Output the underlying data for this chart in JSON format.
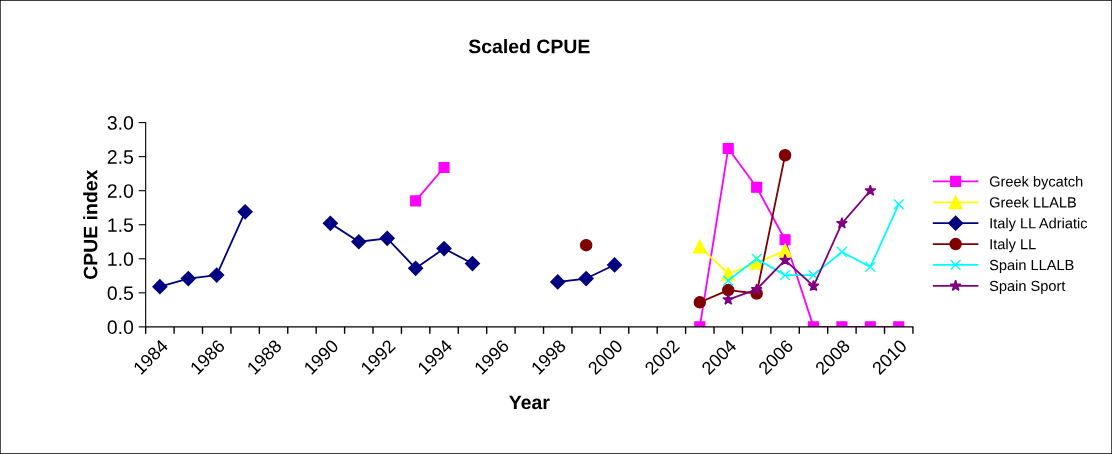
{
  "chart_data": {
    "type": "line",
    "title": "Scaled CPUE",
    "xlabel": "Year",
    "ylabel": "CPUE index",
    "categories": [
      "1984",
      null,
      "1986",
      null,
      "1988",
      null,
      "1990",
      null,
      "1992",
      null,
      "1994",
      null,
      "1996",
      null,
      "1998",
      null,
      "2000",
      null,
      "2002",
      null,
      "2004",
      null,
      "2006",
      null,
      "2008",
      null,
      "2010"
    ],
    "ylim": [
      0,
      3
    ],
    "yticks": [
      {
        "value": 0,
        "label": "0.0"
      },
      {
        "value": 0.5,
        "label": "0.5"
      },
      {
        "value": 1,
        "label": "1.0"
      },
      {
        "value": 1.5,
        "label": "1.5"
      },
      {
        "value": 2,
        "label": "2.0"
      },
      {
        "value": 2.5,
        "label": "2.5"
      },
      {
        "value": 3,
        "label": "3.0"
      }
    ],
    "grid": false,
    "legend": "right",
    "line_style": "solid",
    "series": [
      {
        "name": "Greek bycatch",
        "color": "#ff00ff",
        "marker": "square",
        "values": [
          null,
          null,
          null,
          null,
          null,
          null,
          null,
          null,
          null,
          1.85,
          2.34,
          null,
          null,
          null,
          null,
          null,
          null,
          null,
          null,
          0.0,
          2.62,
          2.05,
          1.28,
          0.0,
          0.0,
          0.0,
          0.0
        ]
      },
      {
        "name": "Greek LLALB",
        "color": "#ffff00",
        "marker": "triangle",
        "values": [
          null,
          null,
          null,
          null,
          null,
          null,
          null,
          null,
          null,
          null,
          null,
          null,
          null,
          null,
          null,
          null,
          null,
          null,
          null,
          1.18,
          0.78,
          0.94,
          1.12,
          null,
          null,
          null,
          null
        ]
      },
      {
        "name": "Italy LL Adriatic",
        "color": "#000080",
        "marker": "diamond",
        "values": [
          0.59,
          0.71,
          0.76,
          1.69,
          null,
          null,
          1.52,
          1.25,
          1.3,
          0.86,
          1.15,
          0.93,
          null,
          null,
          0.66,
          0.71,
          0.91,
          null,
          null,
          null,
          null,
          null,
          null,
          null,
          null,
          null,
          null
        ]
      },
      {
        "name": "Italy LL",
        "color": "#800000",
        "marker": "circle",
        "values": [
          null,
          null,
          null,
          null,
          null,
          null,
          null,
          null,
          null,
          null,
          null,
          null,
          null,
          null,
          null,
          1.2,
          null,
          null,
          null,
          0.36,
          0.54,
          0.49,
          2.52,
          null,
          null,
          null,
          null
        ]
      },
      {
        "name": "Spain LLALB",
        "color": "#00ffff",
        "marker": "cross",
        "values": [
          null,
          null,
          null,
          null,
          null,
          null,
          null,
          null,
          null,
          null,
          null,
          null,
          null,
          null,
          null,
          null,
          null,
          null,
          null,
          null,
          0.68,
          1.0,
          0.76,
          0.76,
          1.1,
          0.88,
          1.8
        ]
      },
      {
        "name": "Spain Sport",
        "color": "#800080",
        "marker": "star",
        "values": [
          null,
          null,
          null,
          null,
          null,
          null,
          null,
          null,
          null,
          null,
          null,
          null,
          null,
          null,
          null,
          null,
          null,
          null,
          null,
          null,
          0.4,
          0.55,
          0.98,
          0.6,
          1.52,
          2.0,
          null
        ]
      }
    ]
  }
}
